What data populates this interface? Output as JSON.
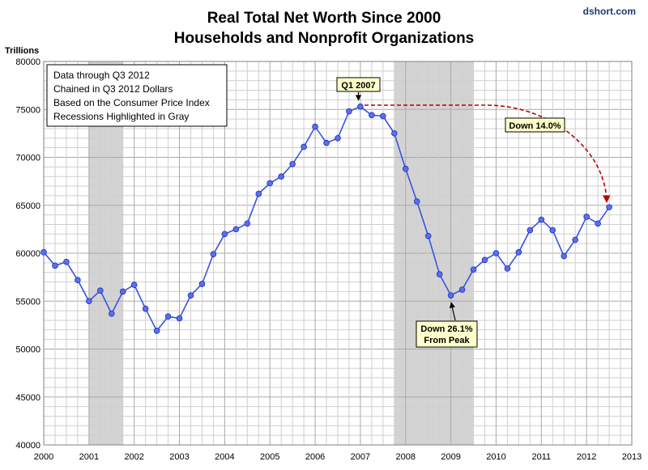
{
  "chart_data": {
    "type": "line",
    "title": "Real Total Net Worth Since 2000",
    "subtitle": "Households and Nonprofit Organizations",
    "credit": "dshort.com",
    "ylabel": "Trillions",
    "xlabel": "",
    "ylim": [
      40000,
      80000
    ],
    "xlim": [
      2000,
      2013
    ],
    "yticks": [
      40000,
      45000,
      50000,
      55000,
      60000,
      65000,
      70000,
      75000,
      80000
    ],
    "xticks": [
      2000,
      2001,
      2002,
      2003,
      2004,
      2005,
      2006,
      2007,
      2008,
      2009,
      2010,
      2011,
      2012,
      2013
    ],
    "grid": true,
    "series": [
      {
        "name": "Real Total Net Worth",
        "color": "#3a52e0",
        "x": [
          2000.0,
          2000.25,
          2000.5,
          2000.75,
          2001.0,
          2001.25,
          2001.5,
          2001.75,
          2002.0,
          2002.25,
          2002.5,
          2002.75,
          2003.0,
          2003.25,
          2003.5,
          2003.75,
          2004.0,
          2004.25,
          2004.5,
          2004.75,
          2005.0,
          2005.25,
          2005.5,
          2005.75,
          2006.0,
          2006.25,
          2006.5,
          2006.75,
          2007.0,
          2007.25,
          2007.5,
          2007.75,
          2008.0,
          2008.25,
          2008.5,
          2008.75,
          2009.0,
          2009.25,
          2009.5,
          2009.75,
          2010.0,
          2010.25,
          2010.5,
          2010.75,
          2011.0,
          2011.25,
          2011.5,
          2011.75,
          2012.0,
          2012.25,
          2012.5
        ],
        "values": [
          60100,
          58700,
          59100,
          57200,
          55000,
          56100,
          53700,
          56000,
          56700,
          54200,
          51900,
          53400,
          53200,
          55600,
          56800,
          59900,
          62000,
          62500,
          63100,
          66200,
          67300,
          68000,
          69300,
          71100,
          73200,
          71500,
          72000,
          74800,
          75300,
          74400,
          74300,
          72500,
          68800,
          65400,
          61800,
          57800,
          55600,
          56200,
          58300,
          59300,
          60000,
          58400,
          60100,
          62400,
          63500,
          62400,
          59700,
          61400,
          63800,
          63100,
          64800
        ]
      }
    ],
    "recessions": [
      {
        "start": 2001.0,
        "end": 2001.75
      },
      {
        "start": 2007.75,
        "end": 2009.5
      }
    ],
    "info_box": [
      "Data through  Q3 2012",
      "Chained in Q3 2012 Dollars",
      "Based on the Consumer Price Index",
      "Recessions Highlighted in Gray"
    ],
    "annotations": {
      "peak": {
        "label": "Q1 2007",
        "x": 2007.0,
        "y": 75300
      },
      "trough": {
        "label_lines": [
          "Down 26.1%",
          "From Peak"
        ],
        "x": 2009.0,
        "y": 55600
      },
      "recovery": {
        "label": "Down 14.0%",
        "x": 2012.5,
        "y": 64800
      }
    },
    "colors": {
      "line": "#3a52e0",
      "marker_fill": "#5a6ff0",
      "recession": "#d3d3d3",
      "callout_bg": "#ffffcc",
      "arrow_red": "#c00000"
    }
  }
}
